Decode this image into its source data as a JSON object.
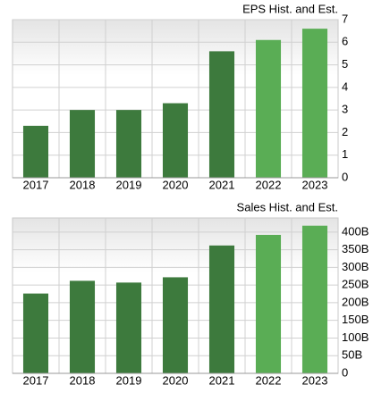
{
  "chart_data": [
    {
      "type": "bar",
      "title": "EPS Hist. and Est.",
      "categories": [
        "2017",
        "2018",
        "2019",
        "2020",
        "2021",
        "2022",
        "2023"
      ],
      "values": [
        2.3,
        3.0,
        3.0,
        3.3,
        5.6,
        6.1,
        6.6
      ],
      "colors": [
        "#3d7a3d",
        "#3d7a3d",
        "#3d7a3d",
        "#3d7a3d",
        "#3d7a3d",
        "#5aad55",
        "#5aad55"
      ],
      "ylim": [
        0,
        7
      ],
      "yticks": [
        0,
        1,
        2,
        3,
        4,
        5,
        6,
        7
      ],
      "grid": true
    },
    {
      "type": "bar",
      "title": "Sales Hist. and Est.",
      "categories": [
        "2017",
        "2018",
        "2019",
        "2020",
        "2021",
        "2022",
        "2023"
      ],
      "values": [
        226,
        262,
        257,
        272,
        362,
        392,
        418
      ],
      "colors": [
        "#3d7a3d",
        "#3d7a3d",
        "#3d7a3d",
        "#3d7a3d",
        "#3d7a3d",
        "#5aad55",
        "#5aad55"
      ],
      "ylim": [
        0,
        440
      ],
      "yticks": [
        0,
        {
          "value": 50,
          "label": "50B"
        },
        {
          "value": 100,
          "label": "100B"
        },
        {
          "value": 150,
          "label": "150B"
        },
        {
          "value": 200,
          "label": "200B"
        },
        {
          "value": 250,
          "label": "250B"
        },
        {
          "value": 300,
          "label": "300B"
        },
        {
          "value": 350,
          "label": "350B"
        },
        {
          "value": 400,
          "label": "400B"
        }
      ],
      "grid": true
    }
  ]
}
